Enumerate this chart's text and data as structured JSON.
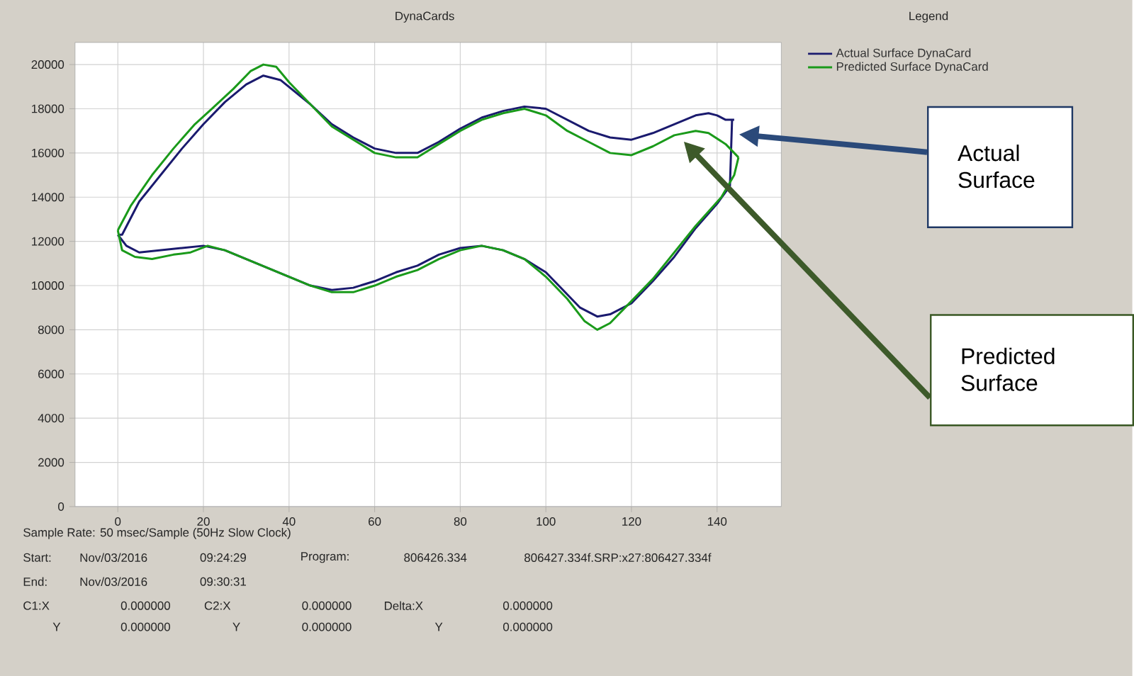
{
  "chart_data": {
    "type": "line",
    "title": "DynaCards",
    "legend_title": "Legend",
    "xlim": [
      -10,
      155
    ],
    "ylim": [
      0,
      21000
    ],
    "xticks": [
      0,
      20,
      40,
      60,
      80,
      100,
      120,
      140
    ],
    "yticks": [
      0,
      2000,
      4000,
      6000,
      8000,
      10000,
      12000,
      14000,
      16000,
      18000,
      20000
    ],
    "grid": true,
    "legend": "top right",
    "series": [
      {
        "name": "Actual Surface DynaCard",
        "color": "#1a1a6e",
        "x": [
          0,
          1,
          5,
          10,
          15,
          20,
          25,
          30,
          34,
          38,
          45,
          50,
          55,
          60,
          65,
          70,
          75,
          80,
          85,
          90,
          95,
          100,
          105,
          110,
          115,
          120,
          125,
          130,
          135,
          138,
          140,
          142,
          144
        ],
        "values": [
          12300,
          12300,
          13800,
          15000,
          16200,
          17300,
          18300,
          19100,
          19500,
          19300,
          18200,
          17300,
          16700,
          16200,
          16000,
          16000,
          16500,
          17100,
          17600,
          17900,
          18100,
          18000,
          17500,
          17000,
          16700,
          16600,
          16900,
          17300,
          17700,
          17800,
          17700,
          17500,
          17500
        ]
      },
      {
        "color": "#1a1a6e",
        "x": [
          0,
          2,
          5,
          10,
          15,
          20,
          25,
          30,
          35,
          40,
          45,
          50,
          55,
          60,
          65,
          70,
          75,
          80,
          85,
          90,
          95,
          100,
          104,
          108,
          112,
          115,
          120,
          125,
          130,
          135,
          140,
          143,
          143.5
        ],
        "values": [
          12300,
          11800,
          11500,
          11600,
          11700,
          11800,
          11600,
          11200,
          10800,
          10400,
          10000,
          9800,
          9900,
          10200,
          10600,
          10900,
          11400,
          11700,
          11800,
          11600,
          11200,
          10600,
          9800,
          9000,
          8600,
          8700,
          9200,
          10200,
          11300,
          12600,
          13700,
          14500,
          17500
        ]
      },
      {
        "name": "Predicted Surface DynaCard",
        "color": "#1a9a1a",
        "x": [
          0,
          3,
          8,
          13,
          18,
          22,
          27,
          31,
          34,
          37,
          40,
          45,
          50,
          55,
          60,
          65,
          70,
          75,
          80,
          85,
          90,
          95,
          100,
          105,
          110,
          115,
          120,
          125,
          130,
          135,
          138,
          142,
          145
        ],
        "values": [
          12500,
          13600,
          15000,
          16200,
          17300,
          18000,
          18900,
          19700,
          20000,
          19900,
          19200,
          18200,
          17200,
          16600,
          16000,
          15800,
          15800,
          16400,
          17000,
          17500,
          17800,
          18000,
          17700,
          17000,
          16500,
          16000,
          15900,
          16300,
          16800,
          17000,
          16900,
          16400,
          15800
        ]
      },
      {
        "color": "#1a9a1a",
        "x": [
          0,
          1,
          4,
          8,
          13,
          17,
          21,
          25,
          30,
          35,
          40,
          45,
          50,
          55,
          60,
          65,
          70,
          75,
          80,
          85,
          90,
          95,
          100,
          105,
          109,
          112,
          115,
          120,
          125,
          130,
          135,
          141,
          144,
          145
        ],
        "values": [
          12500,
          11600,
          11300,
          11200,
          11400,
          11500,
          11800,
          11600,
          11200,
          10800,
          10400,
          10000,
          9700,
          9700,
          10000,
          10400,
          10700,
          11200,
          11600,
          11800,
          11600,
          11200,
          10400,
          9400,
          8400,
          8000,
          8300,
          9300,
          10300,
          11500,
          12700,
          14000,
          15000,
          15800
        ]
      }
    ],
    "annotations": [
      "Actual Surface",
      "Predicted Surface",
      "Sample Rate: 50 msec/Sample (50Hz Slow Clock)",
      "Start:",
      "Nov/03/2016",
      "09:24:29",
      "Program:",
      "806426.334",
      "806427.334f.SRP:x27:806427.334f",
      "End:",
      "Nov/03/2016",
      "09:30:31",
      "C1:X",
      "0.000000",
      "C2:X",
      "0.000000",
      "Delta:X",
      "0.000000",
      "Y",
      "0.000000",
      "Y",
      "0.000000",
      "Y",
      "0.000000"
    ]
  }
}
